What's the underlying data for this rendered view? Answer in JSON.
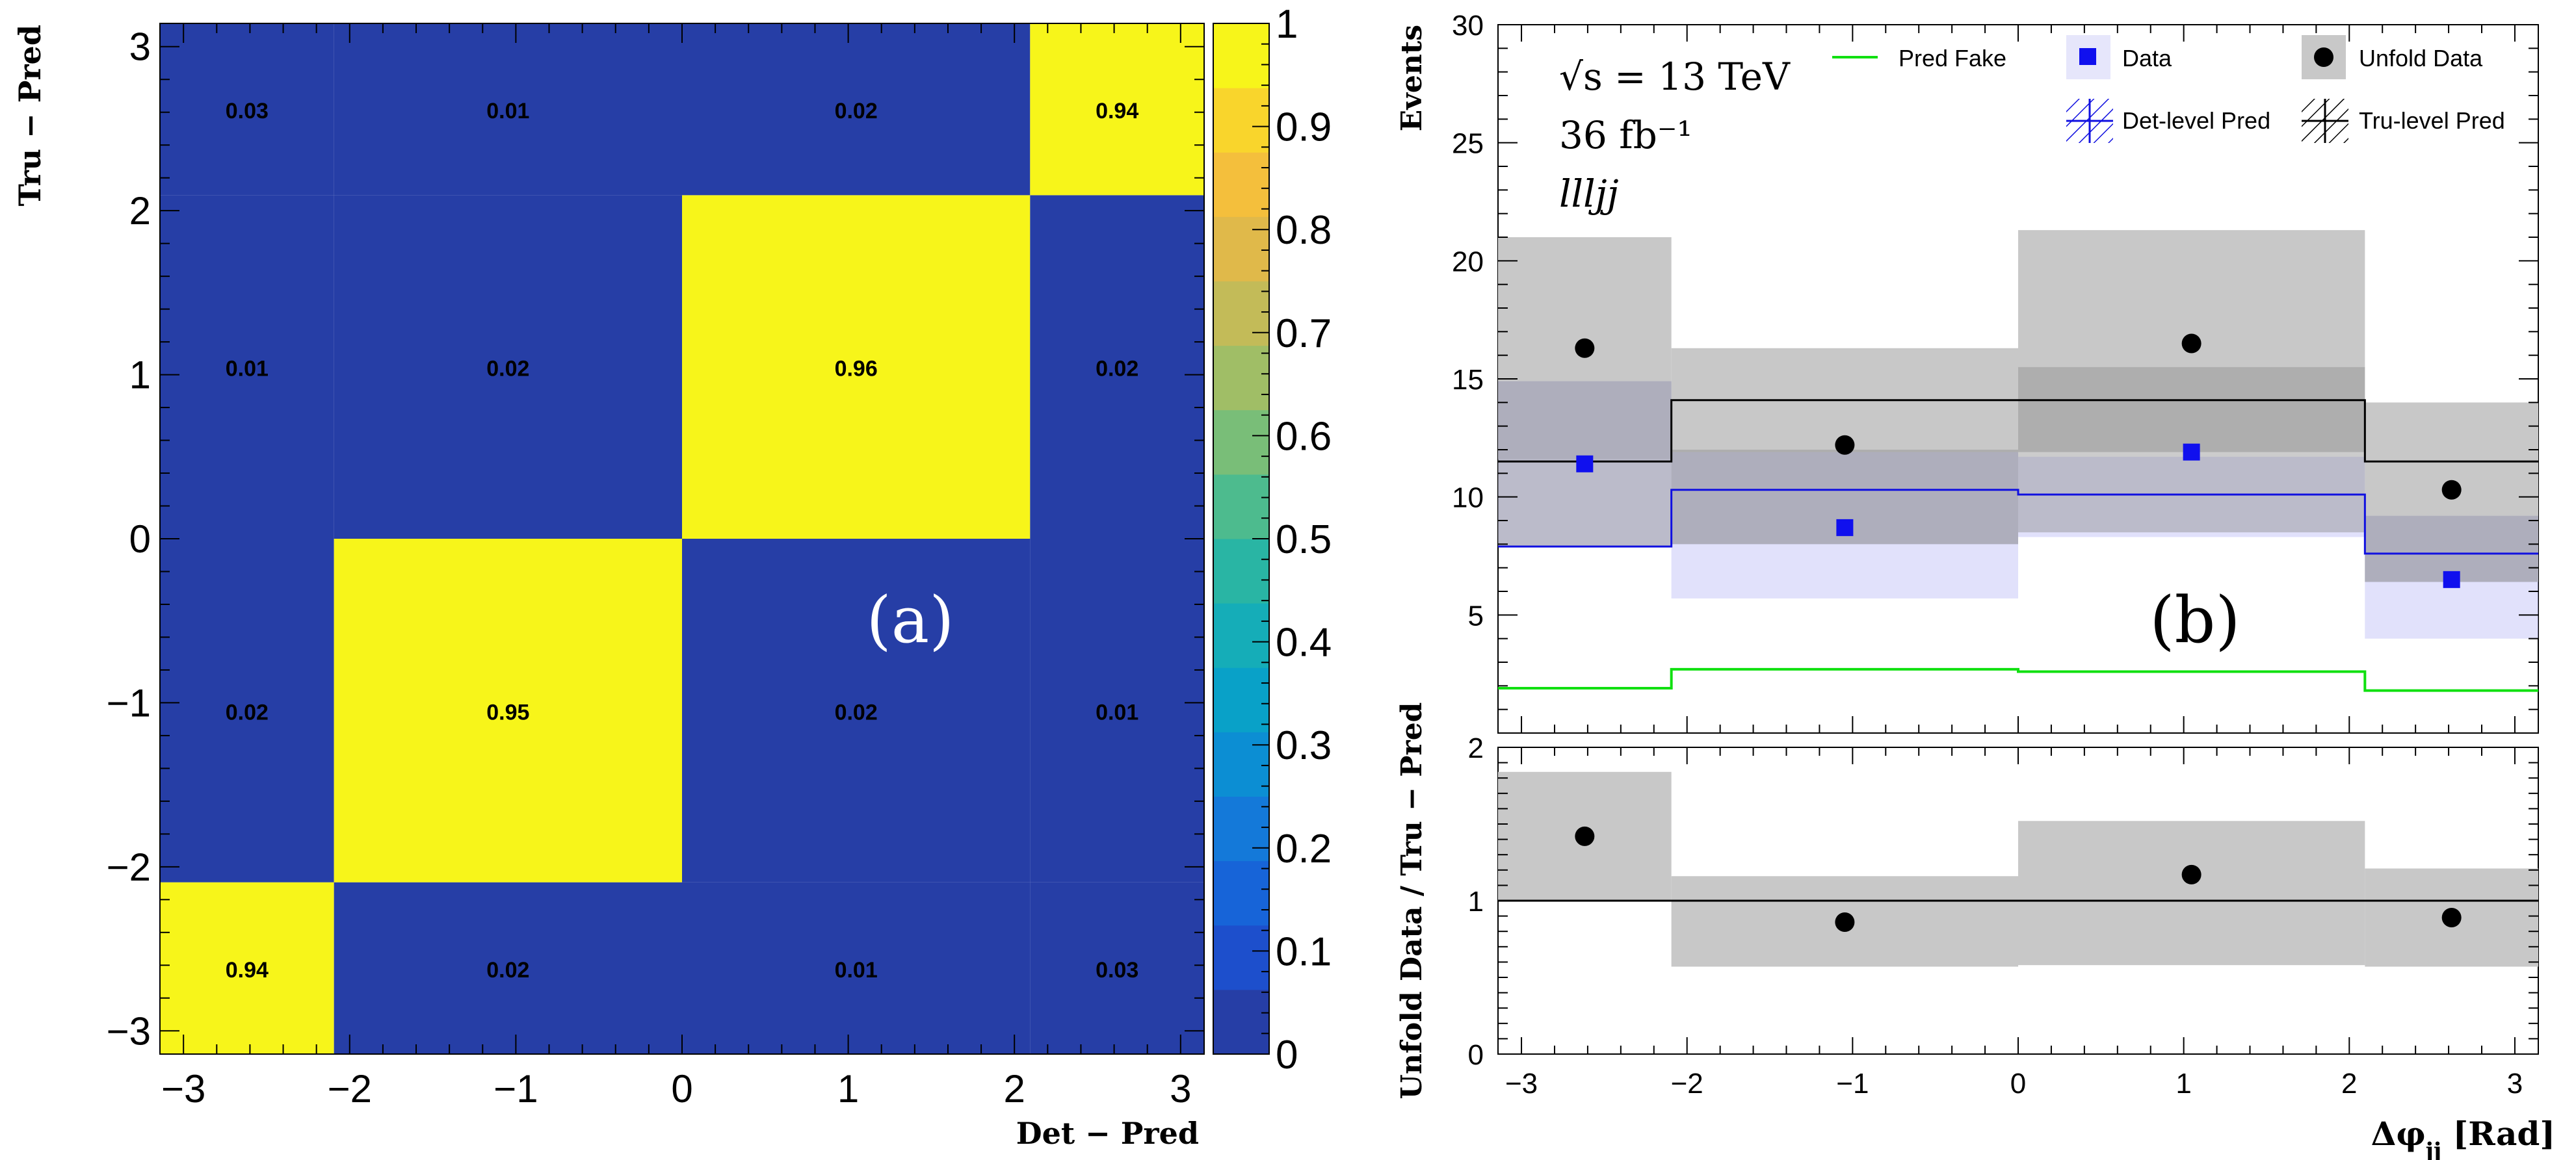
{
  "chart_data": [
    {
      "panel": "a",
      "type": "heatmap",
      "panel_label": "(a)",
      "xlabel": "Det − Pred",
      "ylabel": "Tru − Pred",
      "xlim": [
        -3.1416,
        3.1416
      ],
      "ylim": [
        -3.1416,
        3.1416
      ],
      "x_edges": [
        -3.1416,
        -2.0944,
        0,
        2.0944,
        3.1416
      ],
      "y_edges": [
        -3.1416,
        -2.0944,
        0,
        2.0944,
        3.1416
      ],
      "x_ticks": [
        {
          "v": -3,
          "label": "−3"
        },
        {
          "v": -2,
          "label": "−2"
        },
        {
          "v": -1,
          "label": "−1"
        },
        {
          "v": 0,
          "label": "0"
        },
        {
          "v": 1,
          "label": "1"
        },
        {
          "v": 2,
          "label": "2"
        },
        {
          "v": 3,
          "label": "3"
        }
      ],
      "y_ticks": [
        {
          "v": -3,
          "label": "−3"
        },
        {
          "v": -2,
          "label": "−2"
        },
        {
          "v": -1,
          "label": "−1"
        },
        {
          "v": 0,
          "label": "0"
        },
        {
          "v": 1,
          "label": "1"
        },
        {
          "v": 2,
          "label": "2"
        },
        {
          "v": 3,
          "label": "3"
        }
      ],
      "cells": [
        {
          "xi": 0,
          "yi": 0,
          "value": 0.94,
          "label": "0.94"
        },
        {
          "xi": 1,
          "yi": 0,
          "value": 0.02,
          "label": "0.02"
        },
        {
          "xi": 2,
          "yi": 0,
          "value": 0.01,
          "label": "0.01"
        },
        {
          "xi": 3,
          "yi": 0,
          "value": 0.03,
          "label": "0.03"
        },
        {
          "xi": 0,
          "yi": 1,
          "value": 0.02,
          "label": "0.02"
        },
        {
          "xi": 1,
          "yi": 1,
          "value": 0.95,
          "label": "0.95"
        },
        {
          "xi": 2,
          "yi": 1,
          "value": 0.02,
          "label": "0.02"
        },
        {
          "xi": 3,
          "yi": 1,
          "value": 0.01,
          "label": "0.01"
        },
        {
          "xi": 0,
          "yi": 2,
          "value": 0.01,
          "label": "0.01"
        },
        {
          "xi": 1,
          "yi": 2,
          "value": 0.02,
          "label": "0.02"
        },
        {
          "xi": 2,
          "yi": 2,
          "value": 0.96,
          "label": "0.96"
        },
        {
          "xi": 3,
          "yi": 2,
          "value": 0.02,
          "label": "0.02"
        },
        {
          "xi": 0,
          "yi": 3,
          "value": 0.03,
          "label": "0.03"
        },
        {
          "xi": 1,
          "yi": 3,
          "value": 0.01,
          "label": "0.01"
        },
        {
          "xi": 2,
          "yi": 3,
          "value": 0.02,
          "label": "0.02"
        },
        {
          "xi": 3,
          "yi": 3,
          "value": 0.94,
          "label": "0.94"
        }
      ],
      "colorbar": {
        "range": [
          0,
          1
        ],
        "ticks": [
          {
            "v": 0,
            "label": "0"
          },
          {
            "v": 0.1,
            "label": "0.1"
          },
          {
            "v": 0.2,
            "label": "0.2"
          },
          {
            "v": 0.3,
            "label": "0.3"
          },
          {
            "v": 0.4,
            "label": "0.4"
          },
          {
            "v": 0.5,
            "label": "0.5"
          },
          {
            "v": 0.6,
            "label": "0.6"
          },
          {
            "v": 0.7,
            "label": "0.7"
          },
          {
            "v": 0.8,
            "label": "0.8"
          },
          {
            "v": 0.9,
            "label": "0.9"
          },
          {
            "v": 1,
            "label": "1"
          }
        ],
        "colors": [
          "#263ea6",
          "#1d4fcc",
          "#1764d8",
          "#1479d9",
          "#0c8ed3",
          "#09a1c8",
          "#15adb8",
          "#29b5a4",
          "#4dbb8e",
          "#79be78",
          "#a0be66",
          "#c3bb58",
          "#e0b94a",
          "#f4bf3c",
          "#f9d52c",
          "#f7f51a"
        ]
      }
    },
    {
      "panel": "b",
      "type": "histogram",
      "panel_label": "(b)",
      "xlabel": "Δφ_jj [Rad]",
      "ylabel": "Events",
      "xlim": [
        -3.1416,
        3.1416
      ],
      "ylim": [
        0,
        30
      ],
      "x_edges": [
        -3.1416,
        -2.0944,
        0,
        2.0944,
        3.1416
      ],
      "bin_centers": [
        -2.618,
        -1.047,
        1.047,
        2.618
      ],
      "x_ticks": [
        {
          "v": -3,
          "label": "−3"
        },
        {
          "v": -2,
          "label": "−2"
        },
        {
          "v": -1,
          "label": "−1"
        },
        {
          "v": 0,
          "label": "0"
        },
        {
          "v": 1,
          "label": "1"
        },
        {
          "v": 2,
          "label": "2"
        },
        {
          "v": 3,
          "label": "3"
        }
      ],
      "y_ticks": [
        {
          "v": 5,
          "label": "5"
        },
        {
          "v": 10,
          "label": "10"
        },
        {
          "v": 15,
          "label": "15"
        },
        {
          "v": 20,
          "label": "20"
        },
        {
          "v": 25,
          "label": "25"
        },
        {
          "v": 30,
          "label": "30"
        }
      ],
      "annotation_lines": [
        "√s = 13 TeV",
        "36 fb⁻¹",
        "llljj"
      ],
      "legend": {
        "placement": "top",
        "entries": [
          {
            "key": "pred_fake",
            "label": "Pred Fake"
          },
          {
            "key": "data",
            "label": "Data"
          },
          {
            "key": "unfold",
            "label": "Unfold Data"
          },
          {
            "key": "det",
            "label": "Det-level Pred"
          },
          {
            "key": "tru",
            "label": "Tru-level Pred"
          }
        ]
      },
      "series": [
        {
          "key": "tru",
          "kind": "step_band",
          "values": [
            11.5,
            14.1,
            14.1,
            11.5
          ],
          "band_low": [
            7.9,
            8.0,
            8.5,
            6.4
          ],
          "band_high": [
            14.9,
            12.0,
            15.5,
            9.2
          ]
        },
        {
          "key": "det",
          "kind": "step_band",
          "values": [
            7.9,
            10.3,
            10.1,
            7.6
          ],
          "band_low": [
            7.9,
            5.7,
            8.3,
            4.0
          ],
          "band_high": [
            14.9,
            11.9,
            11.7,
            9.2
          ]
        },
        {
          "key": "pred_fake",
          "kind": "step",
          "values": [
            1.9,
            2.7,
            2.6,
            1.8
          ]
        },
        {
          "key": "data",
          "kind": "markers",
          "values": [
            11.4,
            8.7,
            11.9,
            6.5
          ]
        },
        {
          "key": "unfold",
          "kind": "markers",
          "values": [
            16.3,
            12.2,
            16.5,
            10.3
          ],
          "band_low": [
            11.6,
            8.0,
            11.9,
            6.4
          ],
          "band_high": [
            21.0,
            16.3,
            21.3,
            14.0
          ]
        }
      ],
      "ratio": {
        "ylabel": "Unfold Data / Tru − Pred",
        "ylim": [
          0,
          2
        ],
        "y_ticks": [
          {
            "v": 0,
            "label": "0"
          },
          {
            "v": 1,
            "label": "1"
          },
          {
            "v": 2,
            "label": "2"
          }
        ],
        "reference": 1,
        "values": [
          1.42,
          0.86,
          1.17,
          0.89
        ],
        "band_low": [
          1.0,
          0.57,
          0.58,
          0.57
        ],
        "band_high": [
          1.84,
          1.16,
          1.52,
          1.21
        ]
      },
      "colors": {
        "tru_line": "#000000",
        "tru_band": "#8e8e8e",
        "det_line": "#1010e0",
        "det_band": "#c8c8f8",
        "pred_fake": "#10e010",
        "data": "#1010ee",
        "unfold": "#000000",
        "unfold_band": "#c8c8c8"
      }
    }
  ]
}
